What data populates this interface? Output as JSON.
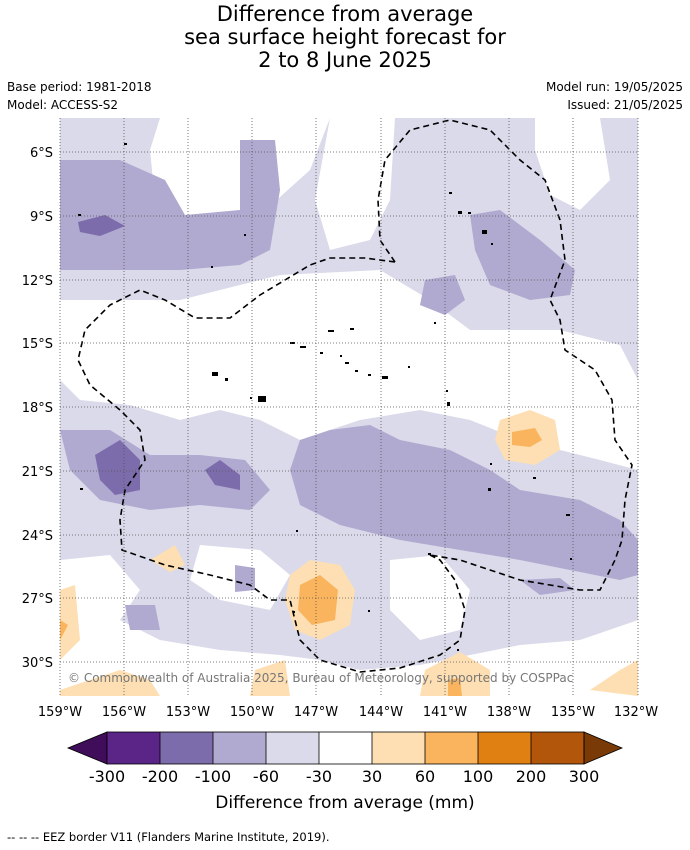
{
  "title": {
    "line1": "Difference from average",
    "line2": "sea surface height forecast for",
    "line3": "2 to 8 June 2025"
  },
  "info": {
    "base_period": "Base period: 1981-2018",
    "model": "Model: ACCESS-S2",
    "model_run": "Model run: 19/05/2025",
    "issued": "Issued: 21/05/2025"
  },
  "map": {
    "lat_labels": [
      "6°S",
      "9°S",
      "12°S",
      "15°S",
      "18°S",
      "21°S",
      "24°S",
      "27°S",
      "30°S"
    ],
    "lon_labels": [
      "159°W",
      "156°W",
      "153°W",
      "150°W",
      "147°W",
      "144°W",
      "141°W",
      "138°W",
      "135°W",
      "132°W"
    ],
    "copyright": "© Commonwealth of Australia 2025, Bureau of Meteorology, supported by COSPPac",
    "gridlines": true
  },
  "colorbar": {
    "ticks": [
      "-300",
      "-200",
      "-100",
      "-60",
      "-30",
      "30",
      "60",
      "100",
      "200",
      "300"
    ],
    "colors": [
      "#3f0d5a",
      "#5b2588",
      "#7d6cab",
      "#b0a9d0",
      "#dadaea",
      "#ffffff",
      "#fddfb3",
      "#fab45e",
      "#e08012",
      "#b1560a",
      "#7a3a08"
    ],
    "label": "Difference from average (mm)"
  },
  "footnote": "--  --  -- EEZ border V11 (Flanders Marine Institute, 2019)."
}
